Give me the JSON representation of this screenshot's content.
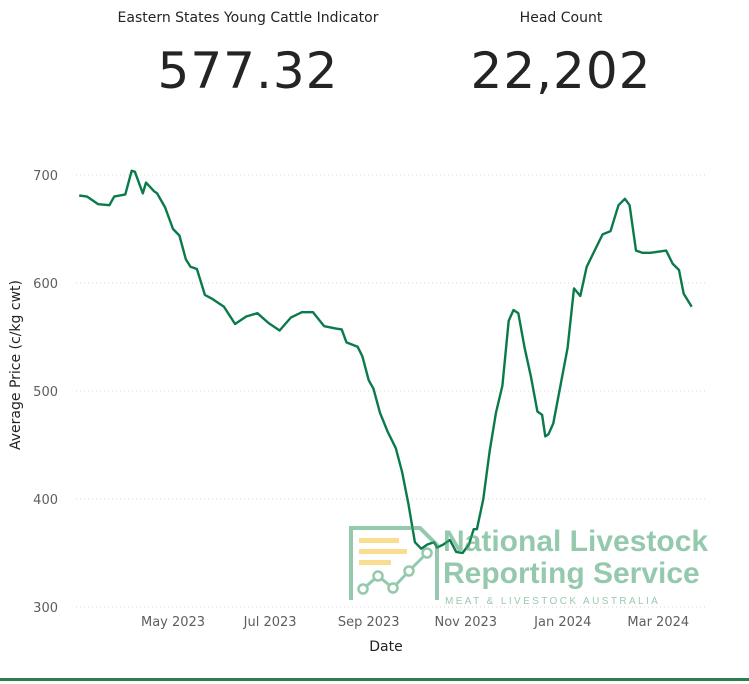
{
  "kpis": {
    "indicator": {
      "label": "Eastern States Young Cattle Indicator",
      "value": "577.32"
    },
    "head_count": {
      "label": "Head Count",
      "value": "22,202"
    }
  },
  "watermark": {
    "line1": "National Livestock",
    "line2": "Reporting Service",
    "line3": "MEAT & LIVESTOCK AUSTRALIA",
    "color": "#3f9e6b"
  },
  "chart_data": {
    "type": "line",
    "xlabel": "Date",
    "ylabel": "Average Price (c/kg cwt)",
    "x_ticks": [
      "May 2023",
      "Jul 2023",
      "Sep 2023",
      "Nov 2023",
      "Jan 2024",
      "Mar 2024"
    ],
    "y_ticks": [
      300,
      400,
      500,
      600,
      700
    ],
    "ylim": [
      300,
      715
    ],
    "xlim": [
      "2023-03-01",
      "2024-03-31"
    ],
    "grid": true,
    "line_color": "#0b7a4b",
    "series": [
      {
        "x": [
          "2023-03-03",
          "2023-03-08",
          "2023-03-15",
          "2023-03-22",
          "2023-03-25",
          "2023-04-01",
          "2023-04-05",
          "2023-04-07",
          "2023-04-12",
          "2023-04-14",
          "2023-04-19",
          "2023-04-21",
          "2023-04-26",
          "2023-05-01",
          "2023-05-05",
          "2023-05-09",
          "2023-05-12",
          "2023-05-16",
          "2023-05-21",
          "2023-05-26",
          "2023-06-02",
          "2023-06-09",
          "2023-06-16",
          "2023-06-23",
          "2023-06-30",
          "2023-07-07",
          "2023-07-14",
          "2023-07-21",
          "2023-07-28",
          "2023-08-04",
          "2023-08-11",
          "2023-08-15",
          "2023-08-18",
          "2023-08-25",
          "2023-08-28",
          "2023-09-01",
          "2023-09-04",
          "2023-09-08",
          "2023-09-13",
          "2023-09-18",
          "2023-09-22",
          "2023-09-26",
          "2023-09-30",
          "2023-10-04",
          "2023-10-08",
          "2023-10-12",
          "2023-10-14",
          "2023-10-18",
          "2023-10-22",
          "2023-10-26",
          "2023-10-30",
          "2023-11-03",
          "2023-11-06",
          "2023-11-08",
          "2023-11-12",
          "2023-11-16",
          "2023-11-20",
          "2023-11-24",
          "2023-11-28",
          "2023-12-01",
          "2023-12-04",
          "2023-12-08",
          "2023-12-12",
          "2023-12-16",
          "2023-12-19",
          "2023-12-21",
          "2023-12-23",
          "2023-12-26",
          "2024-01-04",
          "2024-01-08",
          "2024-01-12",
          "2024-01-16",
          "2024-01-21",
          "2024-01-26",
          "2024-01-31",
          "2024-02-05",
          "2024-02-09",
          "2024-02-12",
          "2024-02-16",
          "2024-02-20",
          "2024-02-25",
          "2024-03-01",
          "2024-03-06",
          "2024-03-10",
          "2024-03-14",
          "2024-03-17",
          "2024-03-22"
        ],
        "y": [
          681,
          680,
          673,
          672,
          680,
          682,
          704,
          703,
          683,
          693,
          685,
          683,
          670,
          650,
          644,
          622,
          615,
          613,
          589,
          585,
          578,
          562,
          569,
          572,
          563,
          556,
          568,
          573,
          573,
          560,
          558,
          557,
          545,
          541,
          532,
          510,
          502,
          480,
          462,
          447,
          425,
          395,
          360,
          354,
          358,
          360,
          355,
          358,
          362,
          351,
          350,
          358,
          372,
          372,
          400,
          444,
          480,
          505,
          565,
          575,
          572,
          540,
          513,
          481,
          478,
          458,
          460,
          470,
          540,
          595,
          588,
          615,
          630,
          645,
          648,
          672,
          678,
          672,
          630,
          628,
          628,
          629,
          630,
          618,
          612,
          590,
          578
        ]
      }
    ]
  }
}
